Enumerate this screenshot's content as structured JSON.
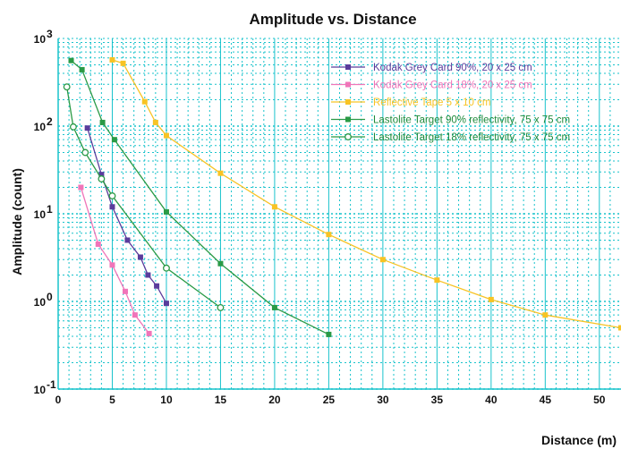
{
  "chart_data": {
    "type": "line",
    "title": "Amplitude vs. Distance",
    "xlabel": "Distance (m)",
    "ylabel": "Amplitude (count)",
    "xlim": [
      0,
      52
    ],
    "ylim": [
      0.1,
      1000
    ],
    "yscale": "log",
    "grid": true,
    "grid_color": "#19c3cc",
    "legend_position": "top-right",
    "x_ticks": [
      0,
      5,
      10,
      15,
      20,
      25,
      30,
      35,
      40,
      45,
      50
    ],
    "x_tick_labels": [
      "0",
      "5",
      "10",
      "15",
      "20",
      "25",
      "30",
      "35",
      "40",
      "45",
      "50"
    ],
    "y_ticks": [
      0.1,
      1,
      10,
      100,
      1000
    ],
    "y_tick_bases": [
      "10",
      "10",
      "10",
      "10",
      "10"
    ],
    "y_tick_exps": [
      "-1",
      "0",
      "1",
      "2",
      "3"
    ],
    "series": [
      {
        "name": "Kodak Grey Card 90%, 20 x 25 cm",
        "color": "#5a3c9c",
        "marker": "square",
        "x": [
          2.7,
          4,
          5,
          6.4,
          7.6,
          8.3,
          9.1,
          10
        ],
        "y": [
          95,
          28,
          12,
          5,
          3.2,
          2,
          1.5,
          0.95
        ]
      },
      {
        "name": "Kodak Grey Card 18%, 20 x 25 cm",
        "color": "#f075b9",
        "marker": "square",
        "x": [
          2.1,
          3.7,
          5,
          6.2,
          7.1,
          8.4
        ],
        "y": [
          20,
          4.5,
          2.6,
          1.3,
          0.7,
          0.43
        ]
      },
      {
        "name": "Reflective Tape 5 x 10 cm",
        "color": "#f7c325",
        "marker": "square",
        "x": [
          5,
          6,
          8,
          9,
          10,
          15,
          20,
          25,
          30,
          35,
          40,
          45,
          52
        ],
        "y": [
          570,
          520,
          190,
          110,
          78,
          29,
          12,
          5.8,
          3,
          1.75,
          1.05,
          0.7,
          0.5
        ]
      },
      {
        "name": "Lastolite Target 90% reflectivity, 75 x 75 cm",
        "color": "#2a9a46",
        "marker": "square",
        "x": [
          1.2,
          2.2,
          4.1,
          5.2,
          10,
          15,
          20,
          25
        ],
        "y": [
          560,
          440,
          110,
          70,
          10.5,
          2.7,
          0.85,
          0.42
        ]
      },
      {
        "name": "Lastolite Target 18% reflectivity, 75 x 75 cm",
        "color": "#2a9a46",
        "marker": "circle",
        "x": [
          0.8,
          1.4,
          2.5,
          4,
          5,
          10,
          15
        ],
        "y": [
          280,
          98,
          50,
          25,
          16,
          2.4,
          0.85
        ]
      }
    ]
  }
}
